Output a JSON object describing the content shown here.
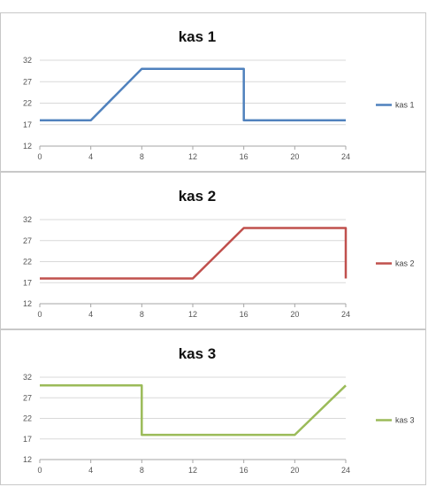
{
  "chart_data": [
    {
      "type": "line",
      "title": "kas 1",
      "xlabel": "",
      "ylabel": "",
      "xlim": [
        0,
        24
      ],
      "ylim": [
        12,
        32
      ],
      "x_ticks": [
        "0",
        "4",
        "8",
        "12",
        "16",
        "20",
        "24"
      ],
      "y_ticks": [
        "12",
        "17",
        "22",
        "27",
        "32"
      ],
      "grid": true,
      "legend_position": "right",
      "series": [
        {
          "name": "kas 1",
          "color": "#4f81bd",
          "points": [
            [
              0,
              18
            ],
            [
              4,
              18
            ],
            [
              8,
              30
            ],
            [
              16,
              30
            ],
            [
              16,
              18
            ],
            [
              24,
              18
            ]
          ]
        }
      ]
    },
    {
      "type": "line",
      "title": "kas 2",
      "xlabel": "",
      "ylabel": "",
      "xlim": [
        0,
        24
      ],
      "ylim": [
        12,
        32
      ],
      "x_ticks": [
        "0",
        "4",
        "8",
        "12",
        "16",
        "20",
        "24"
      ],
      "y_ticks": [
        "12",
        "17",
        "22",
        "27",
        "32"
      ],
      "grid": true,
      "legend_position": "right",
      "series": [
        {
          "name": "kas 2",
          "color": "#c0504d",
          "points": [
            [
              0,
              18
            ],
            [
              12,
              18
            ],
            [
              16,
              30
            ],
            [
              24,
              30
            ],
            [
              24,
              18
            ]
          ]
        }
      ]
    },
    {
      "type": "line",
      "title": "kas 3",
      "xlabel": "",
      "ylabel": "",
      "xlim": [
        0,
        24
      ],
      "ylim": [
        12,
        32
      ],
      "x_ticks": [
        "0",
        "4",
        "8",
        "12",
        "16",
        "20",
        "24"
      ],
      "y_ticks": [
        "12",
        "17",
        "22",
        "27",
        "32"
      ],
      "grid": true,
      "legend_position": "right",
      "series": [
        {
          "name": "kas 3",
          "color": "#9bbb59",
          "points": [
            [
              0,
              30
            ],
            [
              8,
              30
            ],
            [
              8,
              18
            ],
            [
              20,
              18
            ],
            [
              24,
              30
            ]
          ]
        }
      ]
    }
  ]
}
